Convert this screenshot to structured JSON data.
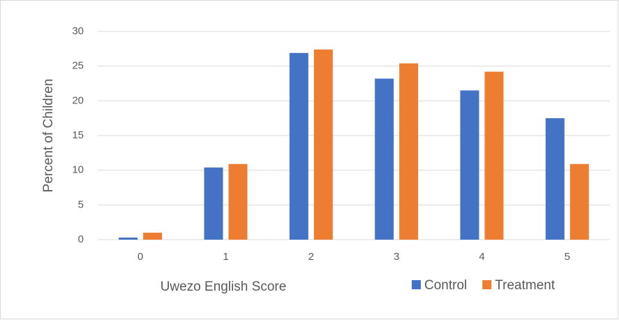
{
  "chart_data": {
    "type": "bar",
    "x_label": "Uwezo English Score",
    "y_label": "Percent of Children",
    "categories": [
      "0",
      "1",
      "2",
      "3",
      "4",
      "5"
    ],
    "series": [
      {
        "name": "Control",
        "color": "#4472c4",
        "values": [
          0.3,
          10.4,
          26.9,
          23.2,
          21.5,
          17.5
        ]
      },
      {
        "name": "Treatment",
        "color": "#ed7d31",
        "values": [
          1.0,
          10.9,
          27.4,
          25.4,
          24.2,
          10.9
        ]
      }
    ],
    "ylim": [
      0,
      30
    ],
    "yticks": [
      0,
      5,
      10,
      15,
      20,
      25,
      30
    ],
    "grid": true,
    "legend": "bottom-right"
  }
}
